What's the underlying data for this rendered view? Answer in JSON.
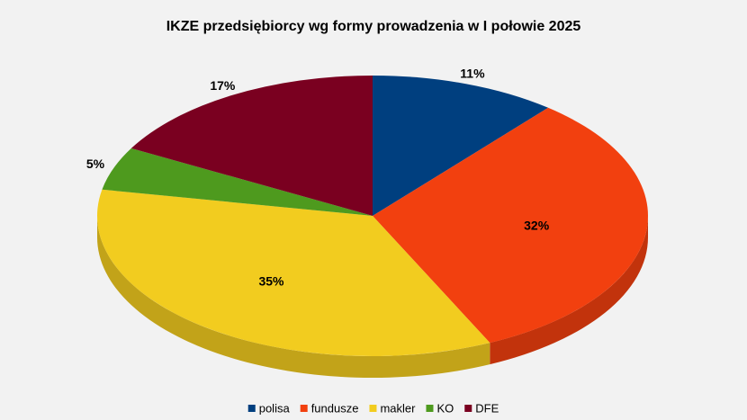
{
  "chart_data": {
    "type": "pie3d",
    "title": "IKZE przedsiębiorcy wg formy prowadzenia w I połowie 2025",
    "categories": [
      "polisa",
      "fundusze",
      "makler",
      "KO",
      "DFE"
    ],
    "values": [
      11,
      32,
      35,
      5,
      17
    ],
    "value_labels": [
      "11%",
      "32%",
      "35%",
      "5%",
      "17%"
    ],
    "colors": [
      "#003f7f",
      "#f2400f",
      "#f2cc1f",
      "#4e9a1e",
      "#7a0020"
    ],
    "legend": "bottom"
  }
}
